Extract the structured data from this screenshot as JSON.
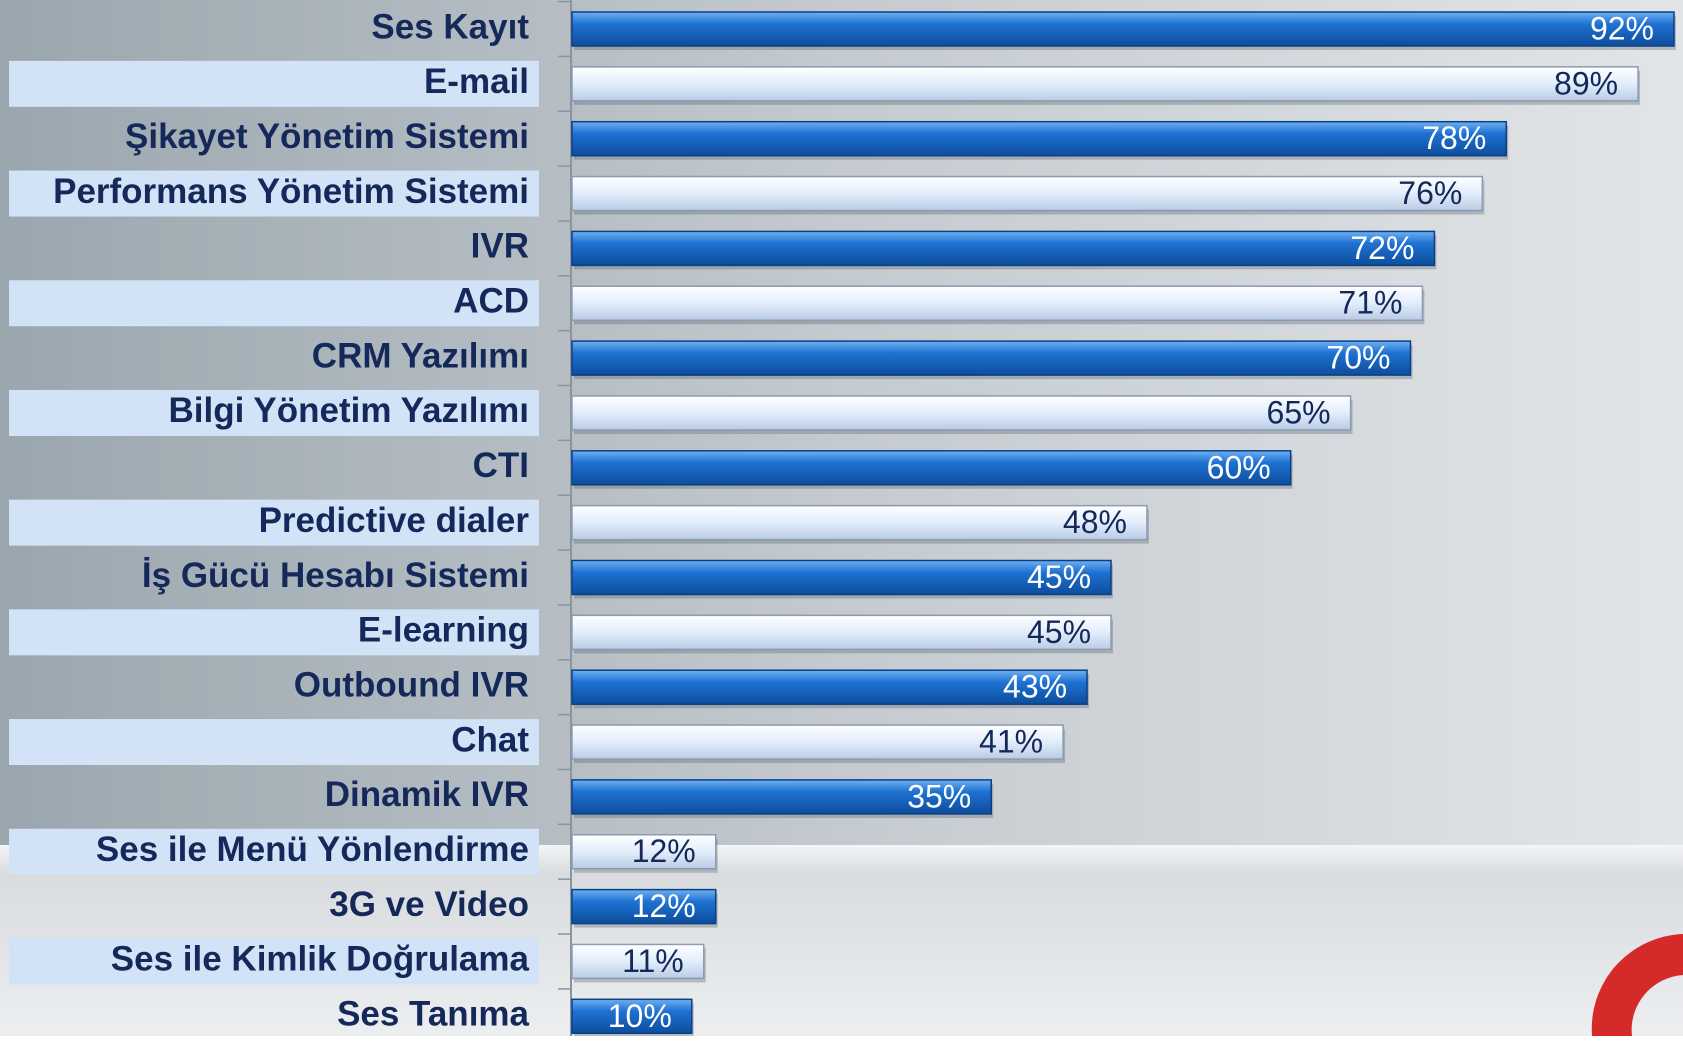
{
  "chart_data": {
    "type": "barh",
    "categories": [
      "Ses Kayıt",
      "E-mail",
      "Şikayet Yönetim Sistemi",
      "Performans Yönetim Sistemi",
      "IVR",
      "ACD",
      "CRM Yazılımı",
      "Bilgi Yönetim Yazılımı",
      "CTI",
      "Predictive dialer",
      "İş Gücü Hesabı Sistemi",
      "E-learning",
      "Outbound IVR",
      "Chat",
      "Dinamik IVR",
      "Ses ile Menü Yönlendirme",
      "3G ve Video",
      "Ses ile Kimlik Doğrulama",
      "Ses Tanıma"
    ],
    "values": [
      92,
      89,
      78,
      76,
      72,
      71,
      70,
      65,
      60,
      48,
      45,
      45,
      43,
      41,
      35,
      12,
      12,
      11,
      10
    ],
    "value_labels": [
      "92%",
      "89%",
      "78%",
      "76%",
      "72%",
      "71%",
      "70%",
      "65%",
      "60%",
      "48%",
      "45%",
      "45%",
      "43%",
      "41%",
      "35%",
      "12%",
      "12%",
      "11%",
      "10%"
    ],
    "colors": [
      "#1c6ccc",
      "#e2edfc"
    ]
  }
}
